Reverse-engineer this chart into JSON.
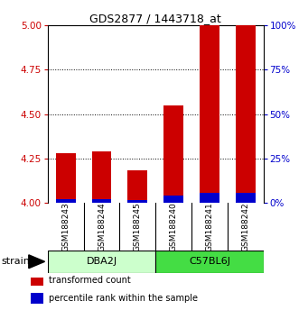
{
  "title": "GDS2877 / 1443718_at",
  "samples": [
    "GSM188243",
    "GSM188244",
    "GSM188245",
    "GSM188240",
    "GSM188241",
    "GSM188242"
  ],
  "red_values": [
    4.28,
    4.29,
    4.18,
    4.55,
    5.0,
    5.0
  ],
  "blue_values": [
    2.0,
    2.0,
    1.5,
    4.0,
    5.5,
    5.5
  ],
  "groups": [
    {
      "label": "DBA2J",
      "start": 0,
      "end": 2,
      "color": "#ccffcc"
    },
    {
      "label": "C57BL6J",
      "start": 3,
      "end": 5,
      "color": "#44dd44"
    }
  ],
  "ylim_left": [
    4.0,
    5.0
  ],
  "ylim_right": [
    0,
    100
  ],
  "yticks_left": [
    4.0,
    4.25,
    4.5,
    4.75,
    5.0
  ],
  "yticks_right": [
    0,
    25,
    50,
    75,
    100
  ],
  "left_color": "#cc0000",
  "right_color": "#0000cc",
  "bar_width": 0.55,
  "group_label": "strain",
  "legend_items": [
    {
      "color": "#cc0000",
      "label": "transformed count"
    },
    {
      "color": "#0000cc",
      "label": "percentile rank within the sample"
    }
  ],
  "background_color": "#ffffff",
  "plot_bg": "#ffffff",
  "sample_box_color": "#cccccc",
  "sample_box_border": "#000000"
}
